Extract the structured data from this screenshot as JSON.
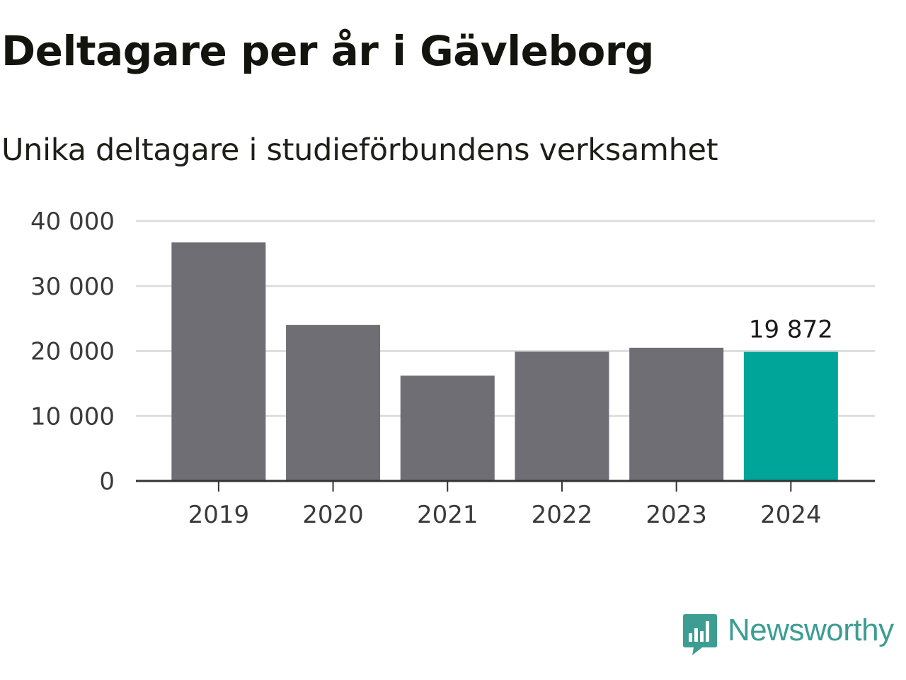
{
  "header": {
    "title": "Deltagare per år i Gävleborg",
    "subtitle": "Unika deltagare i studieförbundens verksamhet"
  },
  "chart_data": {
    "type": "bar",
    "title": "Deltagare per år i Gävleborg",
    "subtitle": "Unika deltagare i studieförbundens verksamhet",
    "xlabel": "",
    "ylabel": "",
    "categories": [
      "2019",
      "2020",
      "2021",
      "2022",
      "2023",
      "2024"
    ],
    "values": [
      36700,
      24000,
      16200,
      19900,
      20500,
      19872
    ],
    "ylim": [
      0,
      40000
    ],
    "yticks": [
      0,
      10000,
      20000,
      30000,
      40000
    ],
    "ytick_labels": [
      "0",
      "10 000",
      "20 000",
      "30 000",
      "40 000"
    ],
    "grid": true,
    "legend": "none",
    "highlight_index": 5,
    "annotation": {
      "index": 5,
      "text": "19 872"
    },
    "colors": {
      "bar": "#6f6e74",
      "highlight": "#00a59a",
      "grid": "#dedede",
      "axis": "#333333"
    }
  },
  "brand": {
    "name": "Newsworthy",
    "icon": "newsworthy-logo-icon",
    "color": "#3d9d92"
  }
}
